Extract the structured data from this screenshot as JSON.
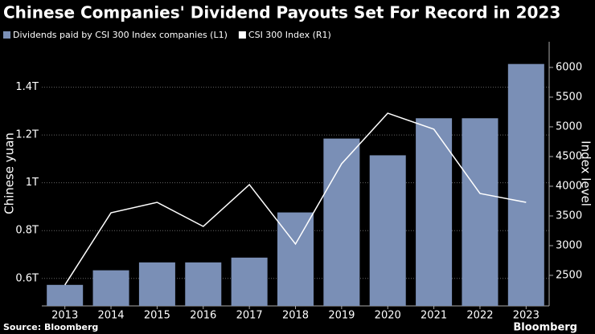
{
  "chart_data": {
    "type": "bar_line",
    "title": "Chinese Companies' Dividend Payouts Set For Record in 2023",
    "categories": [
      "2013",
      "2014",
      "2015",
      "2016",
      "2017",
      "2018",
      "2019",
      "2020",
      "2021",
      "2022",
      "2023"
    ],
    "series": [
      {
        "name": "Dividends paid by CSI 300 Index companies (L1)",
        "color": "#7a8fb6",
        "type": "bar",
        "values": [
          0.573,
          0.634,
          0.667,
          0.667,
          0.687,
          0.876,
          1.185,
          1.115,
          1.27,
          1.27,
          1.497
        ]
      },
      {
        "name": "CSI 300 Index (R1)",
        "color": "#ffffff",
        "type": "line",
        "axis": "y2",
        "values": [
          2338,
          3553,
          3729,
          3324,
          4027,
          3027,
          4378,
          5230,
          4960,
          3878,
          3729
        ]
      }
    ],
    "ylabel": "Chinese yuan",
    "y2label": "Index level",
    "ylim": [
      0.485,
      1.59
    ],
    "yticks": [
      {
        "value": 0.6,
        "label": "0.6T"
      },
      {
        "value": 0.8,
        "label": "0.8T"
      },
      {
        "value": 1,
        "label": "1T"
      },
      {
        "value": 1.2,
        "label": "1.2T"
      },
      {
        "value": 1.4,
        "label": "1.4T"
      }
    ],
    "y2lim": [
      1986,
      6432
    ],
    "y2ticks": [
      2500,
      3000,
      3500,
      4000,
      4500,
      5000,
      5500,
      6000
    ],
    "grid": true,
    "source": "Source: Bloomberg",
    "brand": "Bloomberg"
  }
}
